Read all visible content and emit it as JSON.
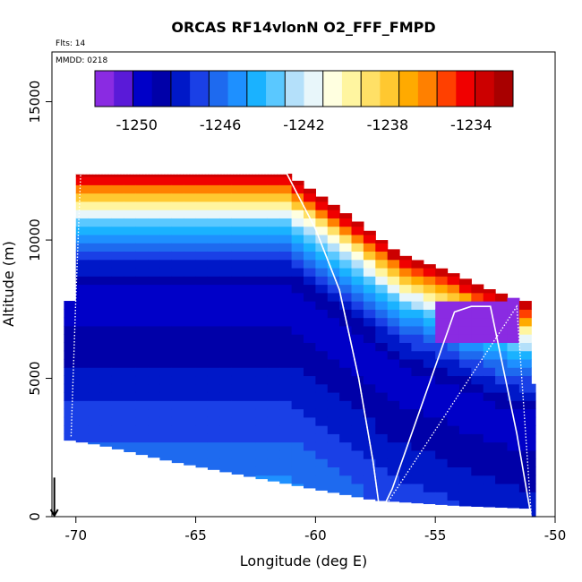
{
  "chart_data": {
    "type": "heatmap",
    "title": "ORCAS RF14vlonN O2_FFF_FMPD",
    "annotations": [
      "Flts: 14",
      "MMDD: 0218"
    ],
    "xlabel": "Longitude (deg E)",
    "ylabel": "Altitude (m)",
    "xlim": [
      -71,
      -50
    ],
    "ylim": [
      0,
      16800
    ],
    "xticks": [
      -70,
      -65,
      -60,
      -55,
      -50
    ],
    "yticks": [
      0,
      5000,
      10000,
      15000
    ],
    "colorbar": {
      "range": [
        -1252,
        -1232
      ],
      "ticks": [
        -1250,
        -1246,
        -1242,
        -1238,
        -1234
      ],
      "colors": [
        "#8a2be2",
        "#5a1ad8",
        "#0000c8",
        "#0000a8",
        "#0018c8",
        "#1a40e6",
        "#1e6aef",
        "#1e90ff",
        "#1ab2ff",
        "#5ac8ff",
        "#b4e0fa",
        "#e8f6fa",
        "#ffffe0",
        "#fff5a0",
        "#ffe066",
        "#ffc830",
        "#ffaa00",
        "#ff8000",
        "#ff4000",
        "#f00000",
        "#cc0000",
        "#a80000"
      ]
    },
    "field": {
      "description_values": "estimated O2_FFF_FMPD values on longitude-altitude grid",
      "top_profile": [
        [
          -70,
          12400
        ],
        [
          -61.2,
          12400
        ],
        [
          -59.8,
          11600
        ],
        [
          -58.3,
          10700
        ],
        [
          -56.5,
          9500
        ],
        [
          -54.5,
          8900
        ],
        [
          -53.0,
          8300
        ],
        [
          -51.4,
          7800
        ]
      ],
      "left_profile": [
        [
          -70.3,
          7800
        ],
        [
          -69.8,
          12400
        ]
      ],
      "bottom_profile": [
        [
          -70.5,
          2800
        ],
        [
          -69,
          2600
        ],
        [
          -66,
          2000
        ],
        [
          -63,
          1500
        ],
        [
          -60,
          1000
        ],
        [
          -57.5,
          600
        ],
        [
          -54,
          400
        ],
        [
          -51,
          300
        ],
        [
          -50.8,
          0
        ]
      ],
      "band_values": [
        {
          "z": 12300,
          "v": -1233
        },
        {
          "z": 11700,
          "v": -1237
        },
        {
          "z": 11100,
          "v": -1241
        },
        {
          "z": 10500,
          "v": -1244
        },
        {
          "z": 9800,
          "v": -1246
        },
        {
          "z": 9000,
          "v": -1248
        },
        {
          "z": 8000,
          "v": -1250
        },
        {
          "z": 6500,
          "v": -1249
        },
        {
          "z": 5000,
          "v": -1248
        },
        {
          "z": 3500,
          "v": -1247
        },
        {
          "z": 2000,
          "v": -1246
        },
        {
          "z": 500,
          "v": -1245
        }
      ]
    },
    "series": [
      {
        "name": "flight track (solid)",
        "style": "solid",
        "x": [
          -70.0,
          -61.2,
          -60.0,
          -59.0,
          -58.2,
          -57.6,
          -57.3,
          -56.8,
          -54.2,
          -53.5,
          -52.7,
          -51.6,
          -51.0
        ],
        "y": [
          12400,
          12400,
          10400,
          8200,
          5000,
          2000,
          100,
          1000,
          7400,
          7600,
          7600,
          3000,
          0
        ]
      },
      {
        "name": "profile track (dotted)",
        "style": "dotted",
        "x": [
          -70.2,
          -70.0,
          -69.8,
          -61.2,
          -60.0,
          -59.0,
          -58.2,
          -57.6,
          -57.3,
          -51.6,
          -51.0
        ],
        "y": [
          2900,
          8000,
          12400,
          12400,
          10400,
          8200,
          5000,
          2000,
          100,
          7600,
          100
        ]
      }
    ],
    "marker": {
      "name": "arrow",
      "x": -70.9,
      "y_top": 700,
      "y_bottom": 0
    }
  }
}
